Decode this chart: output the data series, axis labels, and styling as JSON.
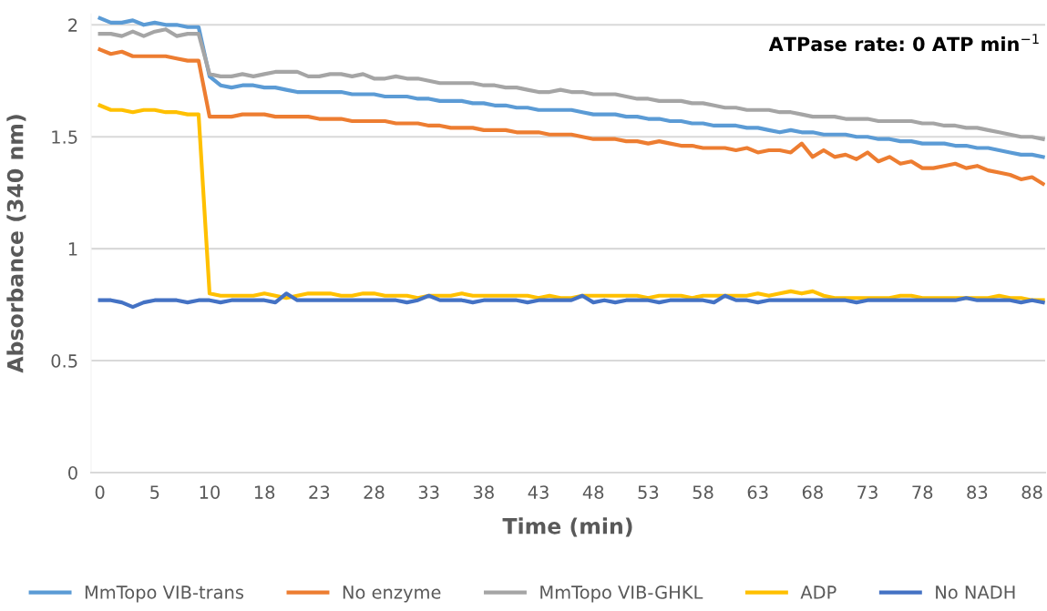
{
  "chart_data": {
    "type": "line",
    "xlabel": "Time (min)",
    "ylabel": "Absorbance (340 nm)",
    "annotations": [
      "ATPase rate: 0 ATP min$^{−1}$"
    ],
    "categories": [
      "0",
      null,
      null,
      null,
      null,
      "5",
      null,
      null,
      null,
      null,
      "10",
      null,
      null,
      null,
      null,
      "18",
      null,
      null,
      null,
      null,
      "23",
      null,
      null,
      null,
      null,
      "28",
      null,
      null,
      null,
      null,
      "33",
      null,
      null,
      null,
      null,
      "38",
      null,
      null,
      null,
      null,
      "43",
      null,
      null,
      null,
      null,
      "48",
      null,
      null,
      null,
      null,
      "53",
      null,
      null,
      null,
      null,
      "58",
      null,
      null,
      null,
      null,
      "63",
      null,
      null,
      null,
      null,
      "68",
      null,
      null,
      null,
      null,
      "73",
      null,
      null,
      null,
      null,
      "78",
      null,
      null,
      null,
      null,
      "83",
      null,
      null,
      null,
      null,
      "88",
      null
    ],
    "series": [
      {
        "name": "MmTopo VIB-trans",
        "color": "#5b9bd5",
        "values": [
          2.03,
          2.01,
          2.01,
          2.02,
          2.0,
          2.01,
          2.0,
          2.0,
          1.99,
          1.99,
          1.77,
          1.73,
          1.72,
          1.73,
          1.73,
          1.72,
          1.72,
          1.71,
          1.7,
          1.7,
          1.7,
          1.7,
          1.7,
          1.69,
          1.69,
          1.69,
          1.68,
          1.68,
          1.68,
          1.67,
          1.67,
          1.66,
          1.66,
          1.66,
          1.65,
          1.65,
          1.64,
          1.64,
          1.63,
          1.63,
          1.62,
          1.62,
          1.62,
          1.62,
          1.61,
          1.6,
          1.6,
          1.6,
          1.59,
          1.59,
          1.58,
          1.58,
          1.57,
          1.57,
          1.56,
          1.56,
          1.55,
          1.55,
          1.55,
          1.54,
          1.54,
          1.53,
          1.52,
          1.53,
          1.52,
          1.52,
          1.51,
          1.51,
          1.51,
          1.5,
          1.5,
          1.49,
          1.49,
          1.48,
          1.48,
          1.47,
          1.47,
          1.47,
          1.46,
          1.46,
          1.45,
          1.45,
          1.44,
          1.43,
          1.42,
          1.42,
          1.41
        ]
      },
      {
        "name": "No enzyme",
        "color": "#ed7d31",
        "values": [
          1.89,
          1.87,
          1.88,
          1.86,
          1.86,
          1.86,
          1.86,
          1.85,
          1.84,
          1.84,
          1.59,
          1.59,
          1.59,
          1.6,
          1.6,
          1.6,
          1.59,
          1.59,
          1.59,
          1.59,
          1.58,
          1.58,
          1.58,
          1.57,
          1.57,
          1.57,
          1.57,
          1.56,
          1.56,
          1.56,
          1.55,
          1.55,
          1.54,
          1.54,
          1.54,
          1.53,
          1.53,
          1.53,
          1.52,
          1.52,
          1.52,
          1.51,
          1.51,
          1.51,
          1.5,
          1.49,
          1.49,
          1.49,
          1.48,
          1.48,
          1.47,
          1.48,
          1.47,
          1.46,
          1.46,
          1.45,
          1.45,
          1.45,
          1.44,
          1.45,
          1.43,
          1.44,
          1.44,
          1.43,
          1.47,
          1.41,
          1.44,
          1.41,
          1.42,
          1.4,
          1.43,
          1.39,
          1.41,
          1.38,
          1.39,
          1.36,
          1.36,
          1.37,
          1.38,
          1.36,
          1.37,
          1.35,
          1.34,
          1.33,
          1.31,
          1.32,
          1.29
        ]
      },
      {
        "name": "MmTopo VIB-GHKL",
        "color": "#a5a5a5",
        "values": [
          1.96,
          1.96,
          1.95,
          1.97,
          1.95,
          1.97,
          1.98,
          1.95,
          1.96,
          1.96,
          1.78,
          1.77,
          1.77,
          1.78,
          1.77,
          1.78,
          1.79,
          1.79,
          1.79,
          1.77,
          1.77,
          1.78,
          1.78,
          1.77,
          1.78,
          1.76,
          1.76,
          1.77,
          1.76,
          1.76,
          1.75,
          1.74,
          1.74,
          1.74,
          1.74,
          1.73,
          1.73,
          1.72,
          1.72,
          1.71,
          1.7,
          1.7,
          1.71,
          1.7,
          1.7,
          1.69,
          1.69,
          1.69,
          1.68,
          1.67,
          1.67,
          1.66,
          1.66,
          1.66,
          1.65,
          1.65,
          1.64,
          1.63,
          1.63,
          1.62,
          1.62,
          1.62,
          1.61,
          1.61,
          1.6,
          1.59,
          1.59,
          1.59,
          1.58,
          1.58,
          1.58,
          1.57,
          1.57,
          1.57,
          1.57,
          1.56,
          1.56,
          1.55,
          1.55,
          1.54,
          1.54,
          1.53,
          1.52,
          1.51,
          1.5,
          1.5,
          1.49
        ]
      },
      {
        "name": "ADP",
        "color": "#ffc000",
        "values": [
          1.64,
          1.62,
          1.62,
          1.61,
          1.62,
          1.62,
          1.61,
          1.61,
          1.6,
          1.6,
          0.8,
          0.79,
          0.79,
          0.79,
          0.79,
          0.8,
          0.79,
          0.78,
          0.79,
          0.8,
          0.8,
          0.8,
          0.79,
          0.79,
          0.8,
          0.8,
          0.79,
          0.79,
          0.79,
          0.78,
          0.79,
          0.79,
          0.79,
          0.8,
          0.79,
          0.79,
          0.79,
          0.79,
          0.79,
          0.79,
          0.78,
          0.79,
          0.78,
          0.78,
          0.79,
          0.79,
          0.79,
          0.79,
          0.79,
          0.79,
          0.78,
          0.79,
          0.79,
          0.79,
          0.78,
          0.79,
          0.79,
          0.79,
          0.79,
          0.79,
          0.8,
          0.79,
          0.8,
          0.81,
          0.8,
          0.81,
          0.79,
          0.78,
          0.78,
          0.78,
          0.78,
          0.78,
          0.78,
          0.79,
          0.79,
          0.78,
          0.78,
          0.78,
          0.78,
          0.78,
          0.78,
          0.78,
          0.79,
          0.78,
          0.78,
          0.77,
          0.77
        ]
      },
      {
        "name": "No NADH",
        "color": "#4472c4",
        "values": [
          0.77,
          0.77,
          0.76,
          0.74,
          0.76,
          0.77,
          0.77,
          0.77,
          0.76,
          0.77,
          0.77,
          0.76,
          0.77,
          0.77,
          0.77,
          0.77,
          0.76,
          0.8,
          0.77,
          0.77,
          0.77,
          0.77,
          0.77,
          0.77,
          0.77,
          0.77,
          0.77,
          0.77,
          0.76,
          0.77,
          0.79,
          0.77,
          0.77,
          0.77,
          0.76,
          0.77,
          0.77,
          0.77,
          0.77,
          0.76,
          0.77,
          0.77,
          0.77,
          0.77,
          0.79,
          0.76,
          0.77,
          0.76,
          0.77,
          0.77,
          0.77,
          0.76,
          0.77,
          0.77,
          0.77,
          0.77,
          0.76,
          0.79,
          0.77,
          0.77,
          0.76,
          0.77,
          0.77,
          0.77,
          0.77,
          0.77,
          0.77,
          0.77,
          0.77,
          0.76,
          0.77,
          0.77,
          0.77,
          0.77,
          0.77,
          0.77,
          0.77,
          0.77,
          0.77,
          0.78,
          0.77,
          0.77,
          0.77,
          0.77,
          0.76,
          0.77,
          0.76
        ]
      }
    ],
    "ylim": [
      0,
      2.05
    ],
    "yticks": [
      0,
      0.5,
      1,
      1.5,
      2
    ],
    "grid": "y",
    "legend": "bottom",
    "marker": "none",
    "line_style": "solid"
  }
}
